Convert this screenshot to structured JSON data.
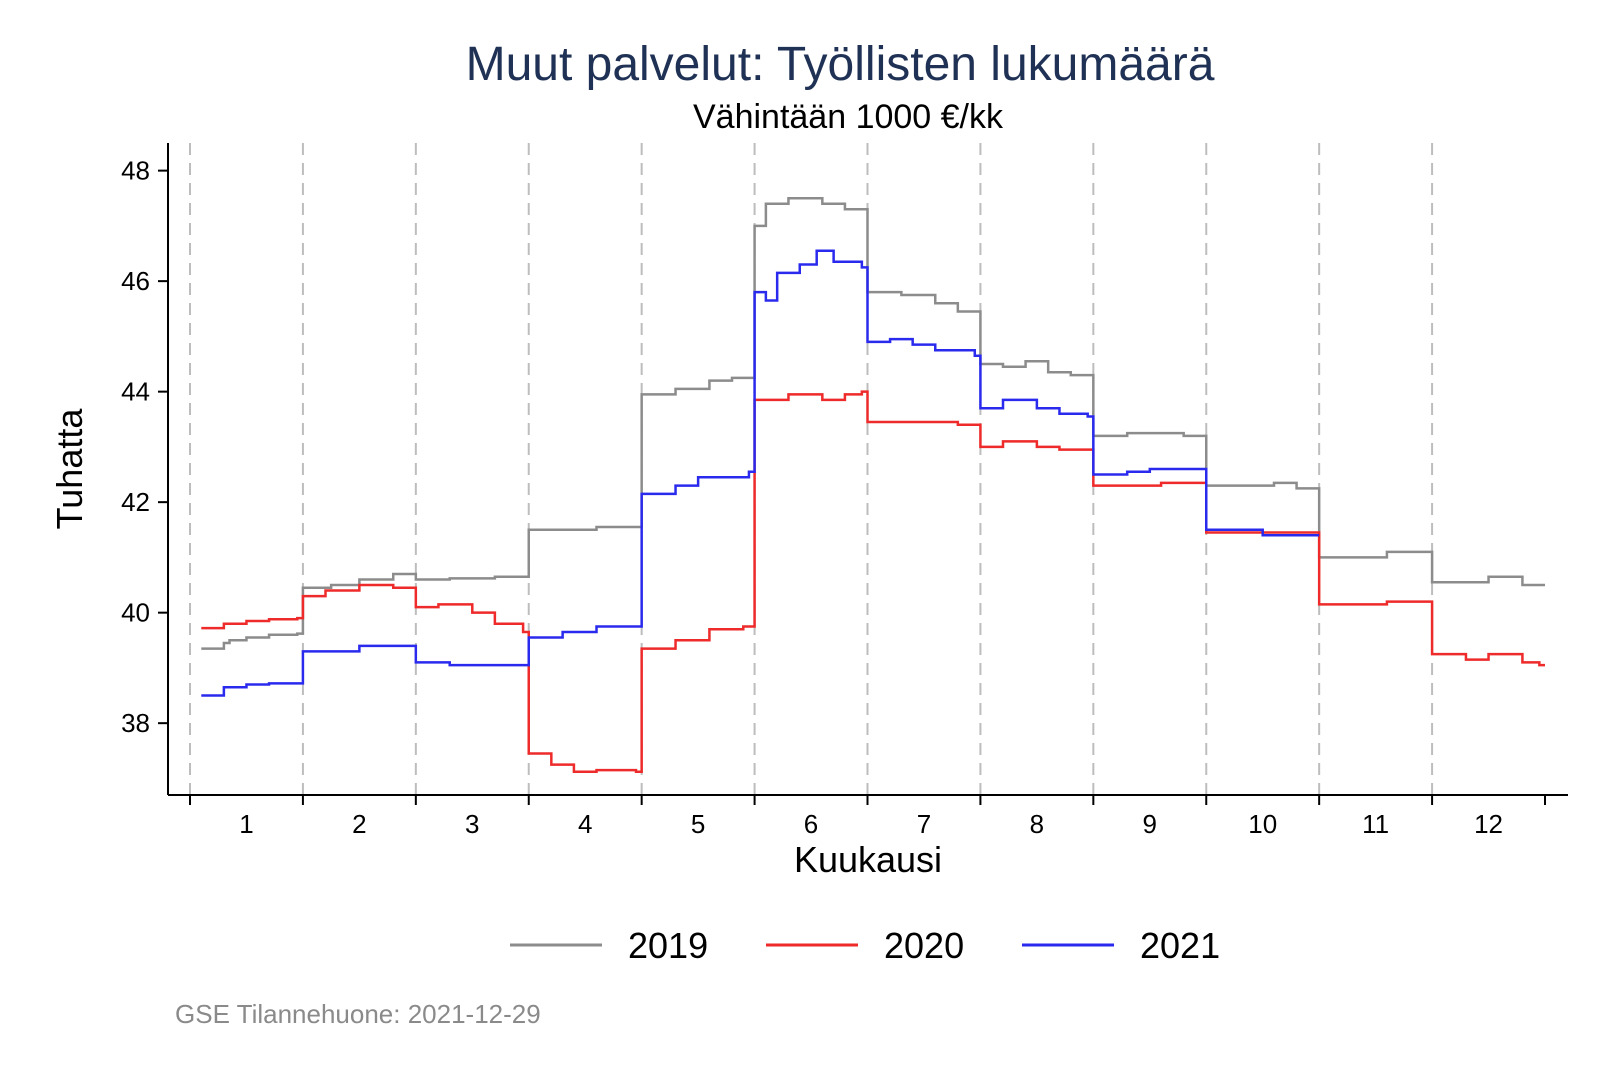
{
  "chart_data": {
    "type": "line",
    "title": "Muut palvelut: Työllisten lukumäärä",
    "subtitle": "Vähintään 1000 €/kk",
    "xlabel": "Kuukausi",
    "ylabel": "Tuhatta",
    "source": "GSE Tilannehuone: 2021-12-29",
    "xlim": [
      0.5,
      12.5
    ],
    "ylim": [
      36.7,
      48.5
    ],
    "x_ticks": [
      "1",
      "2",
      "3",
      "4",
      "5",
      "6",
      "7",
      "8",
      "9",
      "10",
      "11",
      "12"
    ],
    "y_ticks": [
      38,
      40,
      42,
      44,
      46,
      48
    ],
    "month_boundaries": [
      1.5,
      2.5,
      3.5,
      4.5,
      5.5,
      6.5,
      7.5,
      8.5,
      9.5,
      10.5,
      11.5
    ],
    "grid": "vertical dashed lines at month boundaries",
    "legend_position": "bottom",
    "series": [
      {
        "name": "2019",
        "color": "#8c8c8c",
        "points": [
          [
            0.6,
            39.35
          ],
          [
            0.8,
            39.45
          ],
          [
            0.85,
            39.5
          ],
          [
            1.0,
            39.55
          ],
          [
            1.2,
            39.6
          ],
          [
            1.45,
            39.62
          ],
          [
            1.5,
            40.45
          ],
          [
            1.75,
            40.5
          ],
          [
            2.0,
            40.6
          ],
          [
            2.3,
            40.7
          ],
          [
            2.5,
            40.6
          ],
          [
            2.8,
            40.62
          ],
          [
            3.2,
            40.65
          ],
          [
            3.5,
            41.5
          ],
          [
            3.9,
            41.5
          ],
          [
            4.1,
            41.55
          ],
          [
            4.3,
            41.55
          ],
          [
            4.5,
            43.95
          ],
          [
            4.8,
            44.05
          ],
          [
            5.1,
            44.2
          ],
          [
            5.3,
            44.25
          ],
          [
            5.5,
            47.0
          ],
          [
            5.6,
            47.4
          ],
          [
            5.8,
            47.5
          ],
          [
            6.1,
            47.4
          ],
          [
            6.3,
            47.3
          ],
          [
            6.5,
            45.8
          ],
          [
            6.8,
            45.75
          ],
          [
            7.1,
            45.6
          ],
          [
            7.3,
            45.45
          ],
          [
            7.5,
            44.5
          ],
          [
            7.7,
            44.45
          ],
          [
            7.9,
            44.55
          ],
          [
            8.1,
            44.35
          ],
          [
            8.3,
            44.3
          ],
          [
            8.5,
            43.2
          ],
          [
            8.8,
            43.25
          ],
          [
            9.1,
            43.25
          ],
          [
            9.3,
            43.2
          ],
          [
            9.5,
            42.3
          ],
          [
            9.8,
            42.3
          ],
          [
            10.1,
            42.35
          ],
          [
            10.3,
            42.25
          ],
          [
            10.5,
            41.0
          ],
          [
            10.8,
            41.0
          ],
          [
            11.1,
            41.1
          ],
          [
            11.3,
            41.1
          ],
          [
            11.5,
            40.55
          ],
          [
            11.8,
            40.55
          ],
          [
            12.0,
            40.65
          ],
          [
            12.3,
            40.5
          ],
          [
            12.45,
            40.5
          ]
        ]
      },
      {
        "name": "2020",
        "color": "#ee2a2a",
        "points": [
          [
            0.6,
            39.72
          ],
          [
            0.8,
            39.8
          ],
          [
            1.0,
            39.85
          ],
          [
            1.2,
            39.88
          ],
          [
            1.45,
            39.9
          ],
          [
            1.5,
            40.3
          ],
          [
            1.7,
            40.4
          ],
          [
            2.0,
            40.5
          ],
          [
            2.3,
            40.45
          ],
          [
            2.5,
            40.1
          ],
          [
            2.7,
            40.15
          ],
          [
            3.0,
            40.0
          ],
          [
            3.2,
            39.8
          ],
          [
            3.45,
            39.65
          ],
          [
            3.5,
            37.45
          ],
          [
            3.7,
            37.25
          ],
          [
            3.9,
            37.12
          ],
          [
            4.1,
            37.15
          ],
          [
            4.45,
            37.12
          ],
          [
            4.5,
            39.35
          ],
          [
            4.8,
            39.5
          ],
          [
            5.1,
            39.7
          ],
          [
            5.4,
            39.75
          ],
          [
            5.5,
            43.85
          ],
          [
            5.8,
            43.95
          ],
          [
            6.1,
            43.85
          ],
          [
            6.3,
            43.95
          ],
          [
            6.45,
            44.0
          ],
          [
            6.5,
            43.45
          ],
          [
            6.8,
            43.45
          ],
          [
            7.1,
            43.45
          ],
          [
            7.3,
            43.4
          ],
          [
            7.5,
            43.0
          ],
          [
            7.7,
            43.1
          ],
          [
            8.0,
            43.0
          ],
          [
            8.2,
            42.95
          ],
          [
            8.45,
            42.95
          ],
          [
            8.5,
            42.3
          ],
          [
            8.8,
            42.3
          ],
          [
            9.1,
            42.35
          ],
          [
            9.45,
            42.35
          ],
          [
            9.5,
            41.45
          ],
          [
            9.8,
            41.45
          ],
          [
            10.1,
            41.45
          ],
          [
            10.45,
            41.45
          ],
          [
            10.5,
            40.15
          ],
          [
            10.8,
            40.15
          ],
          [
            11.1,
            40.2
          ],
          [
            11.45,
            40.2
          ],
          [
            11.5,
            39.25
          ],
          [
            11.8,
            39.15
          ],
          [
            12.0,
            39.25
          ],
          [
            12.3,
            39.1
          ],
          [
            12.45,
            39.05
          ]
        ]
      },
      {
        "name": "2021",
        "color": "#2a2aee",
        "points": [
          [
            0.6,
            38.5
          ],
          [
            0.8,
            38.65
          ],
          [
            1.0,
            38.7
          ],
          [
            1.2,
            38.72
          ],
          [
            1.45,
            38.72
          ],
          [
            1.5,
            39.3
          ],
          [
            1.8,
            39.3
          ],
          [
            2.0,
            39.4
          ],
          [
            2.45,
            39.4
          ],
          [
            2.5,
            39.1
          ],
          [
            2.8,
            39.05
          ],
          [
            3.1,
            39.05
          ],
          [
            3.45,
            39.05
          ],
          [
            3.5,
            39.55
          ],
          [
            3.8,
            39.65
          ],
          [
            4.1,
            39.75
          ],
          [
            4.45,
            39.75
          ],
          [
            4.5,
            42.15
          ],
          [
            4.8,
            42.3
          ],
          [
            5.0,
            42.45
          ],
          [
            5.45,
            42.55
          ],
          [
            5.5,
            45.8
          ],
          [
            5.6,
            45.65
          ],
          [
            5.7,
            46.15
          ],
          [
            5.9,
            46.3
          ],
          [
            6.05,
            46.55
          ],
          [
            6.2,
            46.35
          ],
          [
            6.45,
            46.25
          ],
          [
            6.5,
            44.9
          ],
          [
            6.7,
            44.95
          ],
          [
            6.9,
            44.85
          ],
          [
            7.1,
            44.75
          ],
          [
            7.45,
            44.65
          ],
          [
            7.5,
            43.7
          ],
          [
            7.7,
            43.85
          ],
          [
            8.0,
            43.7
          ],
          [
            8.2,
            43.6
          ],
          [
            8.45,
            43.55
          ],
          [
            8.5,
            42.5
          ],
          [
            8.8,
            42.55
          ],
          [
            9.0,
            42.6
          ],
          [
            9.45,
            42.6
          ],
          [
            9.5,
            41.5
          ],
          [
            9.8,
            41.5
          ],
          [
            10.0,
            41.4
          ],
          [
            10.45,
            41.4
          ]
        ]
      }
    ]
  }
}
